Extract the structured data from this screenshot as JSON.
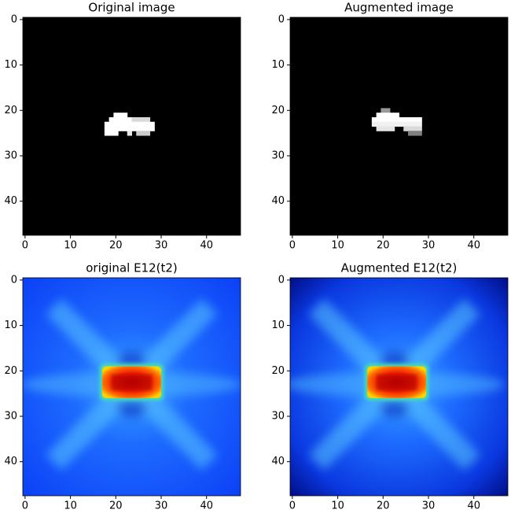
{
  "chart_data": [
    {
      "type": "image",
      "title": "Original image",
      "colormap": "gray",
      "xlim": [
        -0.5,
        47.5
      ],
      "ylim": [
        47.5,
        -0.5
      ],
      "xticks": [
        0,
        10,
        20,
        30,
        40
      ],
      "yticks": [
        0,
        10,
        20,
        30,
        40
      ]
    },
    {
      "type": "image",
      "title": "Augmented image",
      "colormap": "gray",
      "xlim": [
        -0.5,
        47.5
      ],
      "ylim": [
        47.5,
        -0.5
      ],
      "xticks": [
        0,
        10,
        20,
        30,
        40
      ],
      "yticks": [
        0,
        10,
        20,
        30,
        40
      ]
    },
    {
      "type": "image",
      "title": "original E12(t2)",
      "colormap": "jet",
      "xlim": [
        -0.5,
        47.5
      ],
      "ylim": [
        47.5,
        -0.5
      ],
      "xticks": [
        0,
        10,
        20,
        30,
        40
      ],
      "yticks": [
        0,
        10,
        20,
        30,
        40
      ]
    },
    {
      "type": "image",
      "title": "Augmented E12(t2)",
      "colormap": "jet",
      "xlim": [
        -0.5,
        47.5
      ],
      "ylim": [
        47.5,
        -0.5
      ],
      "xticks": [
        0,
        10,
        20,
        30,
        40
      ],
      "yticks": [
        0,
        10,
        20,
        30,
        40
      ]
    }
  ]
}
